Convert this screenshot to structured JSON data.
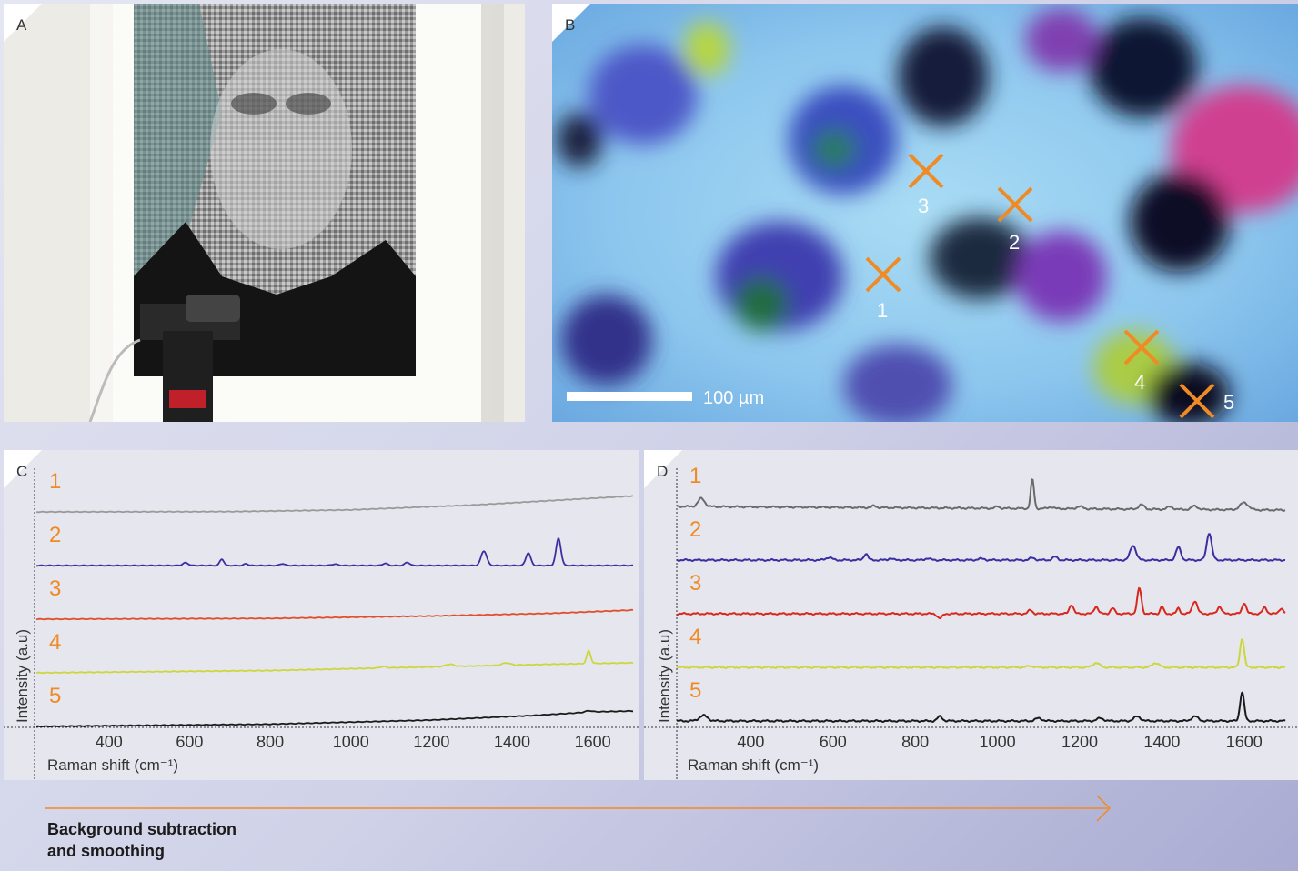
{
  "panels": {
    "a": "A",
    "b": "B",
    "c": "C",
    "d": "D"
  },
  "micrograph": {
    "scale_bar": "100 µm",
    "markers": [
      "1",
      "2",
      "3",
      "4",
      "5"
    ],
    "marker_color": "#f08a24"
  },
  "chart_data": [
    {
      "type": "line",
      "panel": "C",
      "xlabel": "Raman shift (cm⁻¹)",
      "ylabel": "Intensity (a.u)",
      "xlim": [
        220,
        1700
      ],
      "x_ticks": [
        "400",
        "600",
        "800",
        "1000",
        "1200",
        "1400",
        "1600"
      ],
      "stacked": true,
      "series": [
        {
          "name": "1",
          "color": "#9a9a9a",
          "baseline": [
            [
              220,
              0
            ],
            [
              700,
              0.3
            ],
            [
              1000,
              2.2
            ],
            [
              1300,
              7.5
            ],
            [
              1500,
              12.5
            ],
            [
              1700,
              17.5
            ]
          ],
          "peaks": []
        },
        {
          "name": "2",
          "color": "#3a2fa0",
          "baseline": [
            [
              220,
              0
            ],
            [
              1700,
              0
            ]
          ],
          "peaks": [
            [
              590,
              3,
              7
            ],
            [
              680,
              7,
              5
            ],
            [
              740,
              2,
              5
            ],
            [
              830,
              2,
              6
            ],
            [
              960,
              1.5,
              8
            ],
            [
              1085,
              2.5,
              6
            ],
            [
              1140,
              3.5,
              6
            ],
            [
              1330,
              16,
              7
            ],
            [
              1440,
              14,
              6
            ],
            [
              1515,
              30,
              6
            ]
          ]
        },
        {
          "name": "3",
          "color": "#e04e2a",
          "baseline": [
            [
              220,
              0
            ],
            [
              800,
              0.8
            ],
            [
              1200,
              3.5
            ],
            [
              1500,
              6.5
            ],
            [
              1700,
              10
            ]
          ],
          "peaks": []
        },
        {
          "name": "4",
          "color": "#cdd63c",
          "baseline": [
            [
              220,
              0
            ],
            [
              800,
              2.5
            ],
            [
              1200,
              6.5
            ],
            [
              1500,
              9.5
            ],
            [
              1700,
              11
            ]
          ],
          "peaks": [
            [
              1080,
              1.5,
              8
            ],
            [
              1245,
              2.5,
              10
            ],
            [
              1385,
              2.5,
              10
            ],
            [
              1590,
              14,
              5
            ]
          ]
        },
        {
          "name": "5",
          "color": "#1a1a1a",
          "baseline": [
            [
              220,
              0
            ],
            [
              800,
              2.5
            ],
            [
              1200,
              7
            ],
            [
              1450,
              12
            ],
            [
              1600,
              16
            ],
            [
              1700,
              17
            ]
          ],
          "peaks": [
            [
              1590,
              1.5,
              8
            ]
          ]
        }
      ]
    },
    {
      "type": "line",
      "panel": "D",
      "xlabel": "Raman shift (cm⁻¹)",
      "ylabel": "Intensity (a.u)",
      "xlim": [
        220,
        1700
      ],
      "x_ticks": [
        "400",
        "600",
        "800",
        "1000",
        "1200",
        "1400",
        "1600"
      ],
      "stacked": true,
      "series": [
        {
          "name": "1",
          "color": "#6a6a6a",
          "baseline": [
            [
              220,
              0
            ],
            [
              1700,
              -4
            ]
          ],
          "peaks": [
            [
              280,
              9,
              8
            ],
            [
              700,
              2,
              5
            ],
            [
              1000,
              2,
              5
            ],
            [
              1085,
              32,
              4
            ],
            [
              1130,
              2,
              6
            ],
            [
              1200,
              2.5,
              8
            ],
            [
              1350,
              5,
              7
            ],
            [
              1420,
              3,
              7
            ],
            [
              1480,
              4,
              7
            ],
            [
              1600,
              8,
              10
            ]
          ]
        },
        {
          "name": "2",
          "color": "#3a2fa0",
          "baseline": [
            [
              220,
              0
            ],
            [
              1700,
              0
            ]
          ],
          "peaks": [
            [
              590,
              3,
              7
            ],
            [
              680,
              7,
              5
            ],
            [
              740,
              2,
              5
            ],
            [
              830,
              2,
              6
            ],
            [
              960,
              1.5,
              8
            ],
            [
              1085,
              2.5,
              6
            ],
            [
              1140,
              3.5,
              6
            ],
            [
              1330,
              16,
              7
            ],
            [
              1440,
              14,
              6
            ],
            [
              1515,
              30,
              6
            ]
          ]
        },
        {
          "name": "3",
          "color": "#d8281c",
          "baseline": [
            [
              220,
              0
            ],
            [
              1700,
              0
            ]
          ],
          "peaks": [
            [
              860,
              -5,
              6
            ],
            [
              1080,
              4,
              5
            ],
            [
              1180,
              10,
              5
            ],
            [
              1240,
              8,
              5
            ],
            [
              1280,
              6,
              5
            ],
            [
              1345,
              28,
              5
            ],
            [
              1400,
              8,
              4
            ],
            [
              1440,
              6,
              4
            ],
            [
              1480,
              14,
              6
            ],
            [
              1540,
              8,
              5
            ],
            [
              1600,
              12,
              5
            ],
            [
              1650,
              7,
              5
            ],
            [
              1690,
              6,
              5
            ]
          ]
        },
        {
          "name": "4",
          "color": "#cdd63c",
          "baseline": [
            [
              220,
              0
            ],
            [
              1700,
              0
            ]
          ],
          "peaks": [
            [
              1080,
              1.5,
              8
            ],
            [
              1240,
              5,
              8
            ],
            [
              1385,
              5,
              8
            ],
            [
              1595,
              32,
              5
            ]
          ]
        },
        {
          "name": "5",
          "color": "#1a1a1a",
          "baseline": [
            [
              220,
              0
            ],
            [
              1700,
              0
            ]
          ],
          "peaks": [
            [
              285,
              6,
              10
            ],
            [
              860,
              5,
              6
            ],
            [
              1100,
              3,
              8
            ],
            [
              1250,
              3,
              8
            ],
            [
              1340,
              5,
              8
            ],
            [
              1480,
              5,
              8
            ],
            [
              1595,
              32,
              5
            ]
          ]
        }
      ]
    }
  ],
  "caption": {
    "line1": "Background subtraction",
    "line2": "and smoothing",
    "arrow_color": "#f08a24"
  }
}
